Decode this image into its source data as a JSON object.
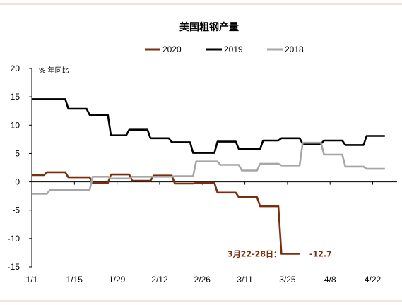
{
  "chart_data": {
    "type": "line",
    "title": "美国粗钢产量",
    "unit_label": "% 年同比",
    "y_range": [
      -15,
      20
    ],
    "y_ticks": [
      20,
      15,
      10,
      5,
      0,
      -5,
      -10,
      -15
    ],
    "x_range": [
      0,
      120
    ],
    "x_ticks": [
      {
        "label": "1/1",
        "x": 0
      },
      {
        "label": "1/15",
        "x": 14
      },
      {
        "label": "1/29",
        "x": 28
      },
      {
        "label": "2/12",
        "x": 42
      },
      {
        "label": "2/26",
        "x": 56
      },
      {
        "label": "3/11",
        "x": 70
      },
      {
        "label": "3/25",
        "x": 84
      },
      {
        "label": "4/8",
        "x": 98
      },
      {
        "label": "4/22",
        "x": 112
      }
    ],
    "legend_position": "top-center",
    "series": [
      {
        "name": "2020",
        "color": "#7a2e0e",
        "points": [
          [
            0,
            1.2
          ],
          [
            4,
            1.2
          ],
          [
            5,
            1.7
          ],
          [
            11,
            1.7
          ],
          [
            12,
            0.8
          ],
          [
            19,
            0.8
          ],
          [
            20,
            -0.2
          ],
          [
            25,
            -0.2
          ],
          [
            26,
            1.3
          ],
          [
            32,
            1.3
          ],
          [
            33,
            0.2
          ],
          [
            39,
            0.2
          ],
          [
            40,
            1.1
          ],
          [
            46,
            1.1
          ],
          [
            47,
            -0.3
          ],
          [
            53,
            -0.3
          ],
          [
            54,
            -0.2
          ],
          [
            60,
            -0.2
          ],
          [
            61,
            -1.9
          ],
          [
            67,
            -1.9
          ],
          [
            68,
            -2.7
          ],
          [
            74,
            -2.7
          ],
          [
            75,
            -4.3
          ],
          [
            81,
            -4.3
          ],
          [
            82,
            -12.7
          ],
          [
            88,
            -12.7
          ]
        ]
      },
      {
        "name": "2019",
        "color": "#000000",
        "points": [
          [
            0,
            14.6
          ],
          [
            11,
            14.6
          ],
          [
            12,
            12.9
          ],
          [
            18,
            12.9
          ],
          [
            19,
            11.8
          ],
          [
            25,
            11.8
          ],
          [
            26,
            8.2
          ],
          [
            31,
            8.2
          ],
          [
            32,
            9.2
          ],
          [
            38,
            9.2
          ],
          [
            39,
            7.7
          ],
          [
            45,
            7.7
          ],
          [
            46,
            7.0
          ],
          [
            52,
            7.0
          ],
          [
            53,
            5.1
          ],
          [
            60,
            5.1
          ],
          [
            61,
            7.1
          ],
          [
            67,
            7.1
          ],
          [
            68,
            5.8
          ],
          [
            75,
            5.8
          ],
          [
            76,
            7.3
          ],
          [
            81,
            7.3
          ],
          [
            82,
            7.7
          ],
          [
            88,
            7.7
          ],
          [
            89,
            6.7
          ],
          [
            95,
            6.7
          ],
          [
            96,
            7.3
          ],
          [
            102,
            7.3
          ],
          [
            103,
            6.5
          ],
          [
            109,
            6.5
          ],
          [
            110,
            8.1
          ],
          [
            116,
            8.1
          ]
        ]
      },
      {
        "name": "2018",
        "color": "#a6a6a6",
        "points": [
          [
            0,
            -2.1
          ],
          [
            5,
            -2.1
          ],
          [
            6,
            -1.4
          ],
          [
            19,
            -1.4
          ],
          [
            20,
            0.9
          ],
          [
            25,
            0.9
          ],
          [
            26,
            0.6
          ],
          [
            32,
            0.6
          ],
          [
            33,
            0.9
          ],
          [
            46,
            0.9
          ],
          [
            47,
            1.0
          ],
          [
            53,
            1.0
          ],
          [
            54,
            3.6
          ],
          [
            61,
            3.6
          ],
          [
            62,
            3.0
          ],
          [
            68,
            3.0
          ],
          [
            69,
            2.0
          ],
          [
            74,
            2.0
          ],
          [
            75,
            3.2
          ],
          [
            81,
            3.2
          ],
          [
            82,
            2.9
          ],
          [
            88,
            2.9
          ],
          [
            89,
            6.9
          ],
          [
            95,
            6.9
          ],
          [
            96,
            4.8
          ],
          [
            102,
            4.8
          ],
          [
            103,
            2.7
          ],
          [
            109,
            2.7
          ],
          [
            110,
            2.3
          ],
          [
            116,
            2.3
          ]
        ]
      }
    ],
    "annotation": {
      "label": "3月22-28日：",
      "value": "-12.7",
      "color": "#7a2e0e",
      "x": 88,
      "y": -12.7
    }
  }
}
